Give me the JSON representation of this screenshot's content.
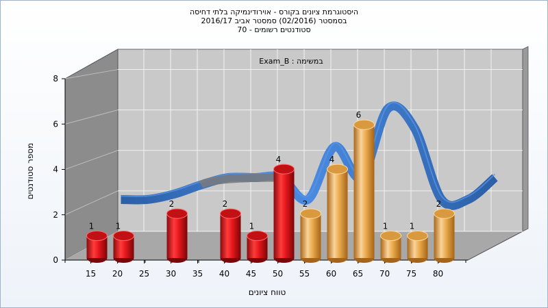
{
  "header": {
    "line1": "היסטוגרמת ציונים בקורס - אוירודינמיקה בלתי דחיסה",
    "line2": "בסמסטר  (02/2016)  סמסטר אביב 2016/17",
    "line3": "סטודנטים רשומים - 70"
  },
  "chart_data": {
    "type": "bar",
    "title": "היסטוגרמת ציונים בקורס - אוירודינמיקה בלתי דחיסה",
    "annotation": "במשימה : Exam_B",
    "xlabel": "טווח ציונים",
    "ylabel": "מספר סטודנטים",
    "ylim": [
      0,
      8
    ],
    "y_ticks": [
      0,
      2,
      4,
      6,
      8
    ],
    "x_ticks": [
      15,
      20,
      25,
      30,
      35,
      40,
      45,
      50,
      55,
      60,
      65,
      70,
      75,
      80
    ],
    "bars": [
      {
        "x": 15,
        "value": 1,
        "color": "red"
      },
      {
        "x": 20,
        "value": 1,
        "color": "red"
      },
      {
        "x": 30,
        "value": 2,
        "color": "red"
      },
      {
        "x": 40,
        "value": 2,
        "color": "red"
      },
      {
        "x": 45,
        "value": 1,
        "color": "red"
      },
      {
        "x": 50,
        "value": 4,
        "color": "red"
      },
      {
        "x": 55,
        "value": 2,
        "color": "orange"
      },
      {
        "x": 60,
        "value": 4,
        "color": "orange"
      },
      {
        "x": 65,
        "value": 6,
        "color": "orange"
      },
      {
        "x": 70,
        "value": 1,
        "color": "orange"
      },
      {
        "x": 75,
        "value": 1,
        "color": "orange"
      },
      {
        "x": 80,
        "value": 2,
        "color": "orange"
      }
    ],
    "trend_line": {
      "x": [
        15,
        20,
        25,
        30,
        35,
        40,
        45,
        50,
        55,
        60,
        65,
        70,
        75,
        80,
        85
      ],
      "y": [
        1.6,
        1.6,
        1.9,
        2.4,
        2.8,
        2.8,
        2.8,
        1.6,
        4.5,
        2.8,
        6.6,
        5.5,
        1.6,
        1.6,
        2.8
      ]
    },
    "grid": true,
    "colors": {
      "red": "#e3161b",
      "orange": "#e9a94b",
      "trend": "#3a78c9",
      "trend_flat": "#7a7a7a",
      "wall": "#8c8c8c",
      "plot_bg": "#c9c9c9",
      "floor": "#a8a8a8"
    }
  }
}
